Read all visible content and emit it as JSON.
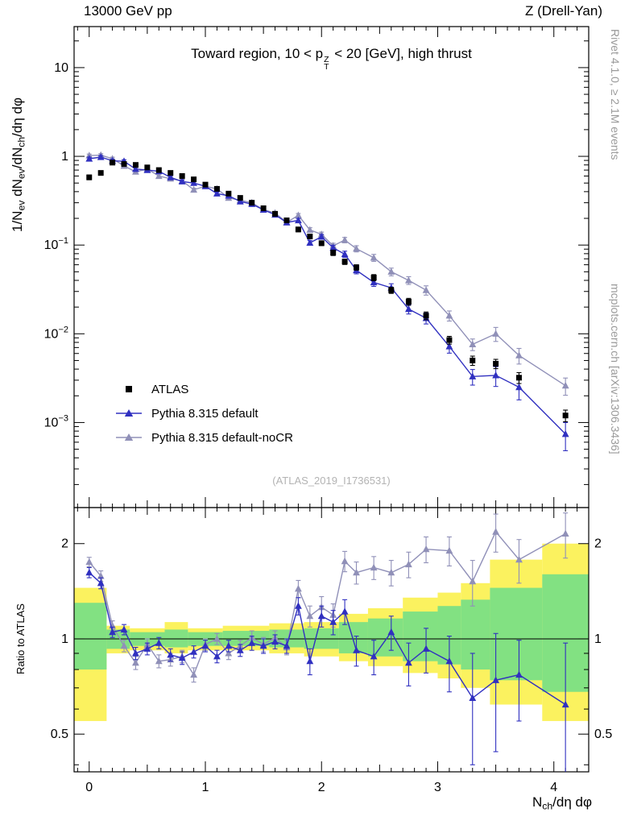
{
  "header": {
    "left_label": "13000 GeV pp",
    "right_label": "Z (Drell-Yan)"
  },
  "title_rich": [
    {
      "t": "Toward region, 10 < p"
    },
    {
      "stack": [
        "Z",
        "T"
      ]
    },
    {
      "t": " < 20 [GeV], high thrust"
    }
  ],
  "axis_labels": {
    "main_y_rich": [
      {
        "t": "1/N"
      },
      {
        "sub": "ev"
      },
      {
        "t": " dN"
      },
      {
        "sub": "ev"
      },
      {
        "t": "/dN"
      },
      {
        "sub": "ch"
      },
      {
        "t": "/dη dφ"
      }
    ],
    "ratio_y": "Ratio to ATLAS",
    "x_rich": [
      {
        "t": "N"
      },
      {
        "sub": "ch"
      },
      {
        "t": "/dη dφ"
      }
    ]
  },
  "side_notes": {
    "top": "Rivet 4.1.0, ≥ 2.1M events",
    "bottom": "mcplots.cern.ch [arXiv:1306.3436]"
  },
  "watermark": "(ATLAS_2019_I1736531)",
  "legend": [
    {
      "label": "ATLAS",
      "marker": "square",
      "color": "#000000",
      "line": false
    },
    {
      "label": "Pythia 8.315 default",
      "marker": "triangle",
      "color": "#3030c0",
      "line": true
    },
    {
      "label": "Pythia 8.315 default-noCR",
      "marker": "triangle",
      "color": "#9090b8",
      "line": true
    }
  ],
  "chart_data": {
    "type": "line",
    "title": "Toward region, 10 < p_T^Z < 20 [GeV], high thrust",
    "xlabel": "N_ch/dη dφ",
    "ylabel": "1/N_ev dN_ev/dN_ch/dη dφ",
    "ratio_ylabel": "Ratio to ATLAS",
    "legend_position": "bottom-left",
    "xlim": [
      -0.13,
      4.3
    ],
    "xticks": [
      0,
      1,
      2,
      3,
      4
    ],
    "x": [
      0,
      0.1,
      0.2,
      0.3,
      0.4,
      0.5,
      0.6,
      0.7,
      0.8,
      0.9,
      1.0,
      1.1,
      1.2,
      1.3,
      1.4,
      1.5,
      1.6,
      1.7,
      1.8,
      1.9,
      2.0,
      2.1,
      2.2,
      2.3,
      2.45,
      2.6,
      2.75,
      2.9,
      3.1,
      3.3,
      3.5,
      3.7,
      4.1
    ],
    "main": {
      "ylog": true,
      "ylim": [
        0.00011,
        29
      ],
      "yticks": [
        10,
        1,
        0.1,
        0.01,
        0.001
      ],
      "series": [
        {
          "name": "ATLAS",
          "color": "#000000",
          "marker": "square",
          "line": false,
          "y": [
            0.58,
            0.65,
            0.85,
            0.82,
            0.8,
            0.75,
            0.7,
            0.65,
            0.6,
            0.55,
            0.48,
            0.43,
            0.38,
            0.34,
            0.3,
            0.26,
            0.225,
            0.19,
            0.15,
            0.125,
            0.105,
            0.082,
            0.065,
            0.056,
            0.043,
            0.031,
            0.023,
            0.016,
            0.0085,
            0.005,
            0.0046,
            0.0032,
            0.0012
          ],
          "yerr_rel": [
            0.06,
            0.05,
            0.05,
            0.05,
            0.05,
            0.05,
            0.05,
            0.05,
            0.05,
            0.05,
            0.05,
            0.05,
            0.05,
            0.05,
            0.05,
            0.05,
            0.05,
            0.05,
            0.06,
            0.06,
            0.06,
            0.07,
            0.07,
            0.07,
            0.08,
            0.08,
            0.09,
            0.1,
            0.1,
            0.12,
            0.12,
            0.14,
            0.15
          ]
        },
        {
          "name": "Pythia 8.315 default",
          "color": "#3030c0",
          "marker": "triangle",
          "line": true,
          "y": [
            0.94,
            0.98,
            0.89,
            0.88,
            0.72,
            0.7,
            0.68,
            0.58,
            0.52,
            0.5,
            0.46,
            0.38,
            0.36,
            0.31,
            0.29,
            0.25,
            0.22,
            0.18,
            0.19,
            0.106,
            0.124,
            0.093,
            0.079,
            0.052,
            0.038,
            0.033,
            0.019,
            0.015,
            0.0072,
            0.0033,
            0.0034,
            0.0025,
            0.00074
          ],
          "yerr_rel": [
            0.04,
            0.04,
            0.04,
            0.04,
            0.04,
            0.04,
            0.04,
            0.04,
            0.04,
            0.04,
            0.04,
            0.04,
            0.04,
            0.04,
            0.04,
            0.04,
            0.04,
            0.04,
            0.05,
            0.06,
            0.06,
            0.07,
            0.08,
            0.09,
            0.1,
            0.11,
            0.12,
            0.14,
            0.16,
            0.2,
            0.25,
            0.28,
            0.35
          ]
        },
        {
          "name": "Pythia 8.315 default-noCR",
          "color": "#9090b8",
          "marker": "triangle",
          "line": true,
          "y": [
            1.02,
            1.03,
            0.94,
            0.78,
            0.67,
            0.72,
            0.6,
            0.56,
            0.53,
            0.42,
            0.46,
            0.43,
            0.34,
            0.32,
            0.3,
            0.25,
            0.23,
            0.18,
            0.216,
            0.148,
            0.132,
            0.098,
            0.114,
            0.091,
            0.072,
            0.05,
            0.04,
            0.031,
            0.016,
            0.0076,
            0.01,
            0.0057,
            0.0026
          ],
          "yerr_rel": [
            0.04,
            0.04,
            0.04,
            0.04,
            0.04,
            0.04,
            0.04,
            0.04,
            0.04,
            0.04,
            0.04,
            0.04,
            0.04,
            0.04,
            0.04,
            0.04,
            0.04,
            0.04,
            0.05,
            0.06,
            0.06,
            0.07,
            0.07,
            0.08,
            0.09,
            0.1,
            0.1,
            0.12,
            0.13,
            0.15,
            0.18,
            0.2,
            0.22
          ]
        }
      ]
    },
    "ratio": {
      "ylog": true,
      "ylim": [
        0.38,
        2.6
      ],
      "yticks": [
        0.5,
        1,
        2
      ],
      "refline": 1,
      "series": [
        {
          "name": "Pythia 8.315 default",
          "color": "#3030c0",
          "marker": "triangle",
          "line": true,
          "y": [
            1.62,
            1.5,
            1.05,
            1.07,
            0.9,
            0.93,
            0.97,
            0.89,
            0.87,
            0.91,
            0.95,
            0.88,
            0.95,
            0.92,
            0.97,
            0.95,
            0.98,
            0.95,
            1.27,
            0.85,
            1.18,
            1.13,
            1.22,
            0.92,
            0.88,
            1.05,
            0.84,
            0.93,
            0.85,
            0.65,
            0.74,
            0.77,
            0.62
          ],
          "yerr": [
            0.06,
            0.06,
            0.04,
            0.04,
            0.04,
            0.04,
            0.04,
            0.04,
            0.04,
            0.04,
            0.04,
            0.04,
            0.04,
            0.04,
            0.05,
            0.05,
            0.05,
            0.05,
            0.08,
            0.08,
            0.09,
            0.1,
            0.11,
            0.1,
            0.11,
            0.13,
            0.13,
            0.15,
            0.17,
            0.25,
            0.3,
            0.22,
            0.35
          ]
        },
        {
          "name": "Pythia 8.315 default-noCR",
          "color": "#9090b8",
          "marker": "triangle",
          "line": true,
          "y": [
            1.75,
            1.58,
            1.1,
            0.95,
            0.84,
            0.96,
            0.85,
            0.86,
            0.88,
            0.77,
            0.96,
            1.0,
            0.9,
            0.95,
            1.01,
            0.96,
            1.01,
            0.94,
            1.44,
            1.18,
            1.26,
            1.19,
            1.76,
            1.62,
            1.68,
            1.62,
            1.72,
            1.92,
            1.9,
            1.52,
            2.18,
            1.78,
            2.15
          ],
          "yerr": [
            0.06,
            0.06,
            0.04,
            0.04,
            0.04,
            0.04,
            0.04,
            0.04,
            0.04,
            0.04,
            0.04,
            0.04,
            0.04,
            0.04,
            0.05,
            0.05,
            0.05,
            0.05,
            0.09,
            0.09,
            0.1,
            0.1,
            0.13,
            0.13,
            0.14,
            0.15,
            0.16,
            0.18,
            0.2,
            0.25,
            0.3,
            0.28,
            0.35
          ]
        }
      ],
      "bands": {
        "yellow": {
          "color": "#fbf25f",
          "edges": [
            -0.13,
            0.15,
            0.35,
            0.65,
            0.85,
            1.15,
            1.55,
            1.85,
            2.15,
            2.4,
            2.7,
            3.0,
            3.2,
            3.45,
            3.9,
            4.3
          ],
          "lo": [
            0.55,
            0.9,
            0.92,
            0.9,
            0.92,
            0.92,
            0.9,
            0.88,
            0.85,
            0.82,
            0.78,
            0.75,
            0.7,
            0.62,
            0.55
          ],
          "hi": [
            1.45,
            1.1,
            1.08,
            1.13,
            1.08,
            1.1,
            1.12,
            1.13,
            1.2,
            1.25,
            1.35,
            1.4,
            1.5,
            1.78,
            2.0
          ]
        },
        "green": {
          "color": "#82e182",
          "edges": [
            -0.13,
            0.15,
            0.35,
            0.65,
            0.85,
            1.15,
            1.55,
            1.85,
            2.15,
            2.4,
            2.7,
            3.0,
            3.2,
            3.45,
            3.9,
            4.3
          ],
          "lo": [
            0.8,
            0.93,
            0.95,
            0.94,
            0.95,
            0.95,
            0.94,
            0.93,
            0.9,
            0.88,
            0.85,
            0.83,
            0.8,
            0.74,
            0.68
          ],
          "hi": [
            1.3,
            1.07,
            1.05,
            1.07,
            1.05,
            1.06,
            1.07,
            1.08,
            1.13,
            1.16,
            1.22,
            1.27,
            1.33,
            1.45,
            1.6
          ]
        }
      }
    }
  }
}
